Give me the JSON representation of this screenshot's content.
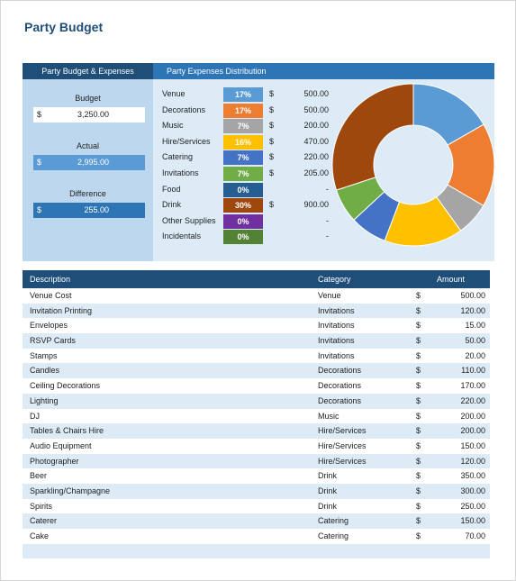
{
  "page_title": "Party Budget",
  "summary": {
    "header": "Party Budget & Expenses",
    "budget": {
      "label": "Budget",
      "currency": "$",
      "value": "3,250.00"
    },
    "actual": {
      "label": "Actual",
      "currency": "$",
      "value": "2,995.00"
    },
    "difference": {
      "label": "Difference",
      "currency": "$",
      "value": "255.00"
    }
  },
  "distribution": {
    "header": "Party Expenses Distribution",
    "rows": [
      {
        "category": "Venue",
        "pct": "17%",
        "currency": "$",
        "amount": "500.00",
        "color": "#5b9bd5"
      },
      {
        "category": "Decorations",
        "pct": "17%",
        "currency": "$",
        "amount": "500.00",
        "color": "#ed7d31"
      },
      {
        "category": "Music",
        "pct": "7%",
        "currency": "$",
        "amount": "200.00",
        "color": "#a5a5a5"
      },
      {
        "category": "Hire/Services",
        "pct": "16%",
        "currency": "$",
        "amount": "470.00",
        "color": "#ffc000"
      },
      {
        "category": "Catering",
        "pct": "7%",
        "currency": "$",
        "amount": "220.00",
        "color": "#4472c4"
      },
      {
        "category": "Invitations",
        "pct": "7%",
        "currency": "$",
        "amount": "205.00",
        "color": "#70ad47"
      },
      {
        "category": "Food",
        "pct": "0%",
        "currency": "",
        "amount": "-",
        "color": "#255e91"
      },
      {
        "category": "Drink",
        "pct": "30%",
        "currency": "$",
        "amount": "900.00",
        "color": "#9e480e"
      },
      {
        "category": "Other Supplies",
        "pct": "0%",
        "currency": "",
        "amount": "-",
        "color": "#7030a0"
      },
      {
        "category": "Incidentals",
        "pct": "0%",
        "currency": "",
        "amount": "-",
        "color": "#548235"
      }
    ]
  },
  "chart_data": {
    "type": "pie",
    "categories": [
      "Venue",
      "Decorations",
      "Music",
      "Hire/Services",
      "Catering",
      "Invitations",
      "Food",
      "Drink",
      "Other Supplies",
      "Incidentals"
    ],
    "values": [
      500,
      500,
      200,
      470,
      220,
      205,
      0,
      900,
      0,
      0
    ],
    "colors": [
      "#5b9bd5",
      "#ed7d31",
      "#a5a5a5",
      "#ffc000",
      "#4472c4",
      "#70ad47",
      "#255e91",
      "#9e480e",
      "#7030a0",
      "#548235"
    ],
    "title": "",
    "legend": "none"
  },
  "expenses_table": {
    "headers": {
      "description": "Description",
      "category": "Category",
      "amount": "Amount"
    },
    "rows": [
      {
        "description": "Venue Cost",
        "category": "Venue",
        "currency": "$",
        "amount": "500.00"
      },
      {
        "description": "Invitation Printing",
        "category": "Invitations",
        "currency": "$",
        "amount": "120.00"
      },
      {
        "description": "Envelopes",
        "category": "Invitations",
        "currency": "$",
        "amount": "15.00"
      },
      {
        "description": "RSVP Cards",
        "category": "Invitations",
        "currency": "$",
        "amount": "50.00"
      },
      {
        "description": "Stamps",
        "category": "Invitations",
        "currency": "$",
        "amount": "20.00"
      },
      {
        "description": "Candles",
        "category": "Decorations",
        "currency": "$",
        "amount": "110.00"
      },
      {
        "description": "Ceiling Decorations",
        "category": "Decorations",
        "currency": "$",
        "amount": "170.00"
      },
      {
        "description": "Lighting",
        "category": "Decorations",
        "currency": "$",
        "amount": "220.00"
      },
      {
        "description": "DJ",
        "category": "Music",
        "currency": "$",
        "amount": "200.00"
      },
      {
        "description": "Tables & Chairs Hire",
        "category": "Hire/Services",
        "currency": "$",
        "amount": "200.00"
      },
      {
        "description": "Audio Equipment",
        "category": "Hire/Services",
        "currency": "$",
        "amount": "150.00"
      },
      {
        "description": "Photographer",
        "category": "Hire/Services",
        "currency": "$",
        "amount": "120.00"
      },
      {
        "description": "Beer",
        "category": "Drink",
        "currency": "$",
        "amount": "350.00"
      },
      {
        "description": "Sparkling/Champagne",
        "category": "Drink",
        "currency": "$",
        "amount": "300.00"
      },
      {
        "description": "Spirits",
        "category": "Drink",
        "currency": "$",
        "amount": "250.00"
      },
      {
        "description": "Caterer",
        "category": "Catering",
        "currency": "$",
        "amount": "150.00"
      },
      {
        "description": "Cake",
        "category": "Catering",
        "currency": "$",
        "amount": "70.00"
      },
      {
        "description": "",
        "category": "",
        "currency": "",
        "amount": ""
      }
    ]
  }
}
